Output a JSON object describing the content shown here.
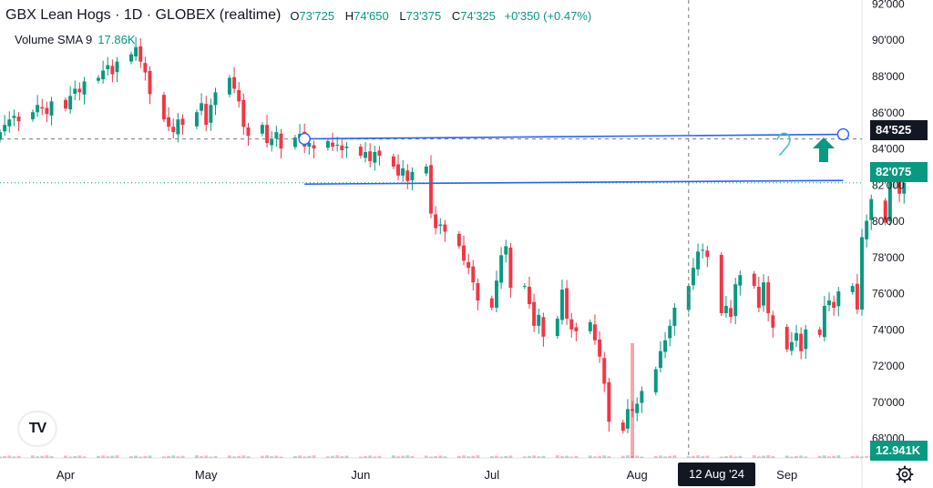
{
  "header": {
    "symbol": "GBX Lean Hogs · 1D · GLOBEX (realtime)",
    "o_label": "O",
    "o": "73'725",
    "h_label": "H",
    "h": "74'650",
    "l_label": "L",
    "l": "73'375",
    "c_label": "C",
    "c": "74'325",
    "change": "+0'350 (+0.47%)"
  },
  "volume": {
    "label": "Volume SMA 9",
    "value": "17.86K"
  },
  "price_tags": {
    "line": "84'525",
    "current": "82'075",
    "volume": "12.941K"
  },
  "crosshair_date": "12 Aug '24",
  "logo_text": "TV",
  "colors": {
    "up": "#089981",
    "down": "#F23645",
    "trendline": "#2962FF",
    "annotation": "#3FC1D6"
  },
  "chart_data": {
    "type": "candlestick",
    "title": "GBX Lean Hogs · 1D · GLOBEX (realtime)",
    "y_ticks": [
      "68'000",
      "70'000",
      "72'000",
      "74'000",
      "76'000",
      "78'000",
      "80'000",
      "82'000",
      "84'000",
      "86'000",
      "88'000",
      "90'000",
      "92'000"
    ],
    "y_tick_values": [
      68,
      70,
      72,
      74,
      76,
      78,
      80,
      82,
      84,
      86,
      88,
      90,
      92
    ],
    "x_ticks": [
      "Apr",
      "May",
      "Jun",
      "Jul",
      "Aug",
      "Sep"
    ],
    "x_tick_dates": [
      "2024-04-01",
      "2024-05-01",
      "2024-06-03",
      "2024-07-01",
      "2024-08-01",
      "2024-09-02"
    ],
    "ylim": [
      66.9,
      92.2
    ],
    "xlim": [
      "2024-03-18",
      "2024-09-18"
    ],
    "crosshair": {
      "date": "2024-08-12",
      "price": 84.525
    },
    "trendlines": [
      {
        "from": [
          "2024-05-22",
          84.53
        ],
        "to": [
          "2024-09-14",
          84.78
        ]
      },
      {
        "from": [
          "2024-05-22",
          82.03
        ],
        "to": [
          "2024-09-14",
          82.23
        ]
      }
    ],
    "price_closes": [
      84.9,
      85.3,
      85.6,
      85.8,
      85.5,
      86.0,
      86.4,
      86.2,
      85.9,
      86.6,
      86.2,
      86.9,
      87.3,
      87.1,
      87.7,
      87.9,
      88.3,
      88.6,
      88.1,
      88.8,
      89.2,
      89.6,
      88.8,
      88.2,
      87.0,
      85.6,
      85.2,
      84.9,
      85.6,
      85.3,
      86.0,
      86.5,
      85.3,
      86.4,
      87.1,
      87.9,
      87.3,
      86.6,
      85.2,
      84.7,
      85.3,
      84.3,
      84.5,
      84.9,
      84.0,
      84.6,
      84.8,
      84.1,
      84.3,
      84.0,
      84.4,
      84.1,
      84.2,
      83.9,
      84.1,
      83.6,
      83.8,
      83.3,
      83.8,
      83.6,
      83.0,
      82.5,
      82.9,
      82.2,
      82.7,
      83.0,
      80.4,
      79.6,
      79.8,
      79.4,
      78.6,
      77.8,
      77.4,
      76.6,
      75.6,
      75.2,
      76.7,
      78.1,
      78.6,
      76.3,
      76.4,
      75.4,
      74.2,
      74.8,
      73.6,
      74.6,
      76.2,
      74.6,
      74.0,
      73.9,
      74.4,
      73.4,
      72.5,
      71.0,
      68.9,
      68.4,
      69.6,
      69.5,
      69.9,
      70.6,
      71.8,
      72.8,
      73.4,
      74.2,
      75.2,
      76.4,
      77.4,
      78.3,
      78.4,
      78.0,
      74.9,
      75.3,
      74.7,
      76.5,
      77.0,
      76.4,
      75.2,
      76.6,
      74.9,
      74.1,
      72.9,
      73.3,
      73.8,
      72.8,
      74.0,
      73.7,
      75.3,
      75.6,
      75.2,
      76.1,
      76.4,
      75.1,
      79.1,
      80.0,
      81.2,
      79.9,
      82.2,
      82.3,
      81.5,
      82.1
    ],
    "volume_spike": {
      "date": "2024-07-31",
      "value": 12.941
    }
  }
}
